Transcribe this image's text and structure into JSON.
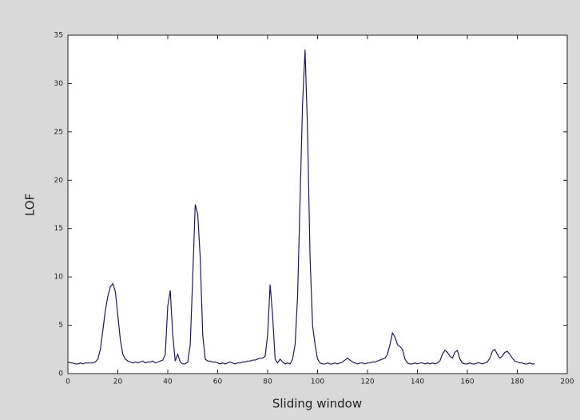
{
  "chart_data": {
    "type": "line",
    "xlabel": "Sliding window",
    "ylabel": "LOF",
    "x": [
      0,
      1,
      2,
      3,
      4,
      5,
      6,
      7,
      8,
      9,
      10,
      11,
      12,
      13,
      14,
      15,
      16,
      17,
      18,
      19,
      20,
      21,
      22,
      23,
      24,
      25,
      26,
      27,
      28,
      29,
      30,
      31,
      32,
      33,
      34,
      35,
      36,
      37,
      38,
      39,
      40,
      41,
      42,
      43,
      44,
      45,
      46,
      47,
      48,
      49,
      50,
      51,
      52,
      53,
      54,
      55,
      56,
      57,
      58,
      59,
      60,
      61,
      62,
      63,
      64,
      65,
      66,
      67,
      68,
      69,
      70,
      71,
      72,
      73,
      74,
      75,
      76,
      77,
      78,
      79,
      80,
      81,
      82,
      83,
      84,
      85,
      86,
      87,
      88,
      89,
      90,
      91,
      92,
      93,
      94,
      95,
      96,
      97,
      98,
      99,
      100,
      101,
      102,
      103,
      104,
      105,
      106,
      107,
      108,
      109,
      110,
      111,
      112,
      113,
      114,
      115,
      116,
      117,
      118,
      119,
      120,
      121,
      122,
      123,
      124,
      125,
      126,
      127,
      128,
      129,
      130,
      131,
      132,
      133,
      134,
      135,
      136,
      137,
      138,
      139,
      140,
      141,
      142,
      143,
      144,
      145,
      146,
      147,
      148,
      149,
      150,
      151,
      152,
      153,
      154,
      155,
      156,
      157,
      158,
      159,
      160,
      161,
      162,
      163,
      164,
      165,
      166,
      167,
      168,
      169,
      170,
      171,
      172,
      173,
      174,
      175,
      176,
      177,
      178,
      179,
      180,
      181,
      182,
      183,
      184,
      185,
      186,
      187
    ],
    "series": [
      {
        "color": "#1c1c4e",
        "values": [
          1.2,
          1.1,
          1.1,
          1.0,
          1.0,
          1.1,
          1.0,
          1.1,
          1.1,
          1.1,
          1.1,
          1.2,
          1.5,
          2.5,
          4.5,
          6.5,
          8.0,
          9.0,
          9.3,
          8.5,
          6.0,
          3.5,
          2.0,
          1.5,
          1.3,
          1.2,
          1.1,
          1.2,
          1.1,
          1.2,
          1.3,
          1.1,
          1.2,
          1.2,
          1.3,
          1.1,
          1.2,
          1.3,
          1.4,
          2.0,
          7.0,
          8.6,
          4.0,
          1.3,
          2.0,
          1.2,
          1.0,
          1.0,
          1.2,
          3.0,
          10,
          17.5,
          16.5,
          12,
          4,
          1.5,
          1.3,
          1.3,
          1.2,
          1.2,
          1.1,
          1.0,
          1.1,
          1.0,
          1.1,
          1.2,
          1.1,
          1.0,
          1.1,
          1.1,
          1.2,
          1.2,
          1.3,
          1.3,
          1.4,
          1.4,
          1.5,
          1.6,
          1.6,
          1.8,
          4.0,
          9.2,
          6.0,
          1.5,
          1.1,
          1.5,
          1.2,
          1.0,
          1.1,
          1.0,
          1.5,
          3.0,
          8.0,
          18,
          28,
          33.5,
          25,
          12,
          5,
          3,
          1.5,
          1.1,
          1.0,
          1.0,
          1.1,
          1.0,
          1.0,
          1.1,
          1.0,
          1.1,
          1.2,
          1.4,
          1.6,
          1.4,
          1.2,
          1.1,
          1.0,
          1.1,
          1.1,
          1.0,
          1.1,
          1.1,
          1.2,
          1.2,
          1.3,
          1.4,
          1.5,
          1.6,
          2.0,
          3.0,
          4.2,
          3.8,
          3.0,
          2.8,
          2.5,
          1.5,
          1.1,
          1.0,
          1.0,
          1.1,
          1.0,
          1.1,
          1.1,
          1.0,
          1.1,
          1.0,
          1.1,
          1.0,
          1.1,
          1.3,
          2.0,
          2.4,
          2.2,
          1.8,
          1.6,
          2.2,
          2.4,
          1.5,
          1.1,
          1.0,
          1.0,
          1.1,
          1.0,
          1.0,
          1.1,
          1.1,
          1.0,
          1.1,
          1.2,
          1.6,
          2.3,
          2.5,
          2.0,
          1.6,
          1.8,
          2.2,
          2.3,
          2.0,
          1.6,
          1.3,
          1.2,
          1.1,
          1.1,
          1.0,
          1.0,
          1.1,
          1.0,
          1.0
        ]
      }
    ],
    "xlim": [
      0,
      200
    ],
    "xticks": [
      0,
      20,
      40,
      60,
      80,
      100,
      120,
      140,
      160,
      180,
      200
    ],
    "ylim": [
      0,
      35
    ],
    "yticks": [
      0,
      5,
      10,
      15,
      20,
      25,
      30,
      35
    ]
  }
}
